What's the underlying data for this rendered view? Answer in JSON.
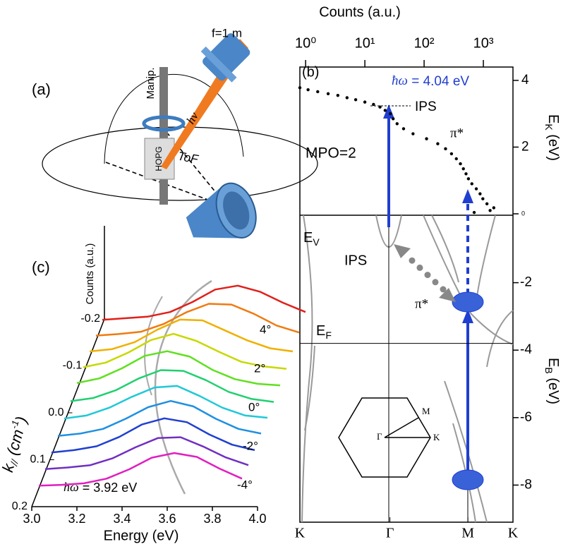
{
  "panel_a": {
    "label": "(a)",
    "labels": [
      "f=1 m",
      "Manip.",
      "hν",
      "HOPG",
      "ToF"
    ]
  },
  "chart_data": [
    {
      "type": "scatter",
      "label": "(b)",
      "x_label": "Counts (a.u.)",
      "y_label": {
        "main": "E",
        "sub": "K",
        "unit": " (eV)"
      },
      "xscale": "log",
      "xlim": [
        0.8,
        3160
      ],
      "xticks": [
        {
          "value": 1,
          "label": "10⁰"
        },
        {
          "value": 10,
          "label": "10¹"
        },
        {
          "value": 100,
          "label": "10²"
        },
        {
          "value": 1000,
          "label": "10³"
        }
      ],
      "ylim": [
        0,
        4.4
      ],
      "yticks": [
        0,
        2,
        4
      ],
      "color": "#000000",
      "x": [
        0.8,
        1.1,
        1.6,
        2.4,
        3.5,
        5,
        7,
        10,
        14,
        18,
        22,
        27,
        30,
        35,
        45,
        65,
        110,
        170,
        230,
        290,
        350,
        410,
        460,
        510,
        560,
        640,
        760,
        880,
        980,
        1150,
        1500,
        1300,
        700
      ],
      "values": [
        3.78,
        3.72,
        3.66,
        3.6,
        3.55,
        3.48,
        3.42,
        3.35,
        3.28,
        3.2,
        3.1,
        3.0,
        2.85,
        2.7,
        2.55,
        2.4,
        2.25,
        2.1,
        1.95,
        1.8,
        1.65,
        1.5,
        1.35,
        1.2,
        1.05,
        0.9,
        0.75,
        0.6,
        0.45,
        0.3,
        0.18,
        0.1,
        0.04
      ],
      "annotations": {
        "photon_symbol": "ħω",
        "photon": " = 4.04 eV",
        "ips": "IPS",
        "mpo": "MPO=2",
        "pi": "π*"
      }
    },
    {
      "type": "band",
      "y_label": {
        "main": "E",
        "sub": "B",
        "unit": " (eV)"
      },
      "xlim": [
        0,
        2.366
      ],
      "xticks": [
        {
          "value": 0,
          "label": "K"
        },
        {
          "value": 1,
          "label": "Γ"
        },
        {
          "value": 1.866,
          "label": "M"
        },
        {
          "value": 2.366,
          "label": "K"
        }
      ],
      "ylim": [
        -9.1,
        0
      ],
      "yticks": [
        -2,
        -4,
        -6,
        -8
      ],
      "fermi_level": -3.8,
      "annotations": {
        "ev_main": "E",
        "ev_sub": "V",
        "ips": "IPS",
        "pi": "π*",
        "ef_main": "E",
        "ef_sub": "F"
      },
      "inset": {
        "m": "M",
        "gamma": "Γ",
        "k": "K"
      }
    },
    {
      "type": "line",
      "label": "(c)",
      "x_label": "Energy (eV)",
      "z_label": "Counts (a.u.)",
      "k_label": {
        "main": "k",
        "sub": "//",
        "unit": " (cm",
        "sup": "-1",
        "close": ")"
      },
      "xlim": [
        3.0,
        4.0
      ],
      "xticks": [
        {
          "value": 3,
          "label": "3.0"
        },
        3.2,
        3.4,
        3.6,
        3.8,
        {
          "value": 4,
          "label": "4.0"
        }
      ],
      "kticks": [
        -0.2,
        -0.1,
        {
          "value": 0,
          "label": "0.0"
        },
        0.1,
        0.2
      ],
      "angle_labels": [
        "4°",
        "2°",
        "0°",
        "-2°",
        "-4°"
      ],
      "annotation": {
        "symbol": "ħω",
        "text": " = 3.92 eV"
      },
      "x": [
        3.0,
        3.1,
        3.2,
        3.3,
        3.4,
        3.5,
        3.6,
        3.7,
        3.8,
        3.9
      ],
      "series": [
        {
          "color": "#e0201a",
          "values": [
            8,
            10,
            12,
            18,
            31,
            47,
            52,
            44,
            30,
            18
          ]
        },
        {
          "color": "#f07a10",
          "values": [
            9,
            11,
            14,
            24,
            39,
            50,
            49,
            37,
            22,
            13
          ]
        },
        {
          "color": "#f0b000",
          "values": [
            10,
            13,
            22,
            38,
            51,
            50,
            37,
            24,
            14,
            10
          ]
        },
        {
          "color": "#c8d800",
          "values": [
            11,
            17,
            30,
            46,
            54,
            45,
            31,
            18,
            12,
            9
          ]
        },
        {
          "color": "#60e020",
          "values": [
            12,
            18,
            31,
            47,
            53,
            46,
            29,
            17,
            11,
            9
          ]
        },
        {
          "color": "#20d070",
          "values": [
            10,
            14,
            24,
            39,
            50,
            49,
            37,
            22,
            13,
            9
          ]
        },
        {
          "color": "#20c8d8",
          "values": [
            9,
            13,
            23,
            37,
            49,
            51,
            38,
            23,
            13,
            10
          ]
        },
        {
          "color": "#2090e0",
          "values": [
            8,
            11,
            17,
            30,
            45,
            53,
            46,
            30,
            17,
            11
          ]
        },
        {
          "color": "#2040d0",
          "values": [
            8,
            11,
            16,
            28,
            44,
            52,
            47,
            31,
            18,
            11
          ]
        },
        {
          "color": "#7030c0",
          "values": [
            8,
            10,
            13,
            22,
            36,
            48,
            49,
            37,
            23,
            13
          ]
        },
        {
          "color": "#e020c0",
          "values": [
            8,
            9,
            11,
            17,
            29,
            44,
            50,
            45,
            30,
            17
          ]
        }
      ]
    }
  ]
}
